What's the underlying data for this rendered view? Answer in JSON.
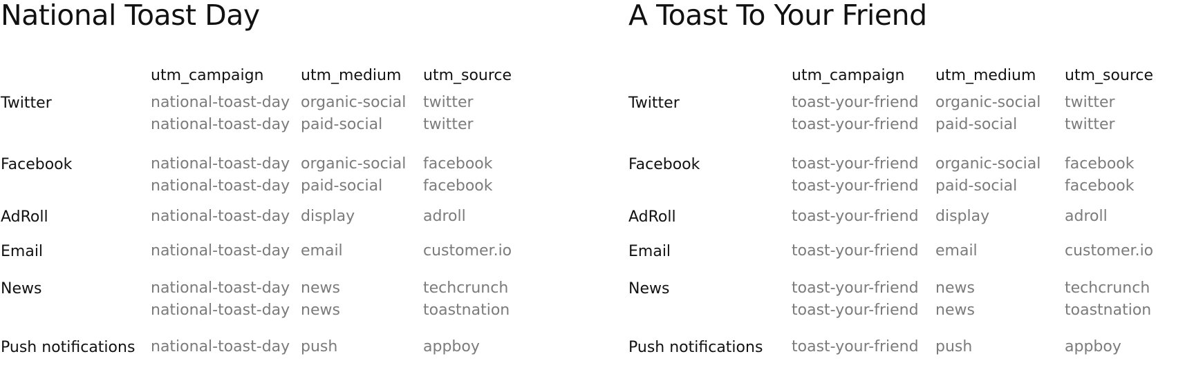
{
  "tables": [
    {
      "title": "National Toast Day",
      "headers": [
        "utm_campaign",
        "utm_medium",
        "utm_source"
      ],
      "rows": [
        {
          "label": "Twitter",
          "campaign": [
            "national-toast-day",
            "national-toast-day"
          ],
          "medium": [
            "organic-social",
            "paid-social"
          ],
          "source": [
            "twitter",
            "twitter"
          ]
        },
        {
          "label": "Facebook",
          "campaign": [
            "national-toast-day",
            "national-toast-day"
          ],
          "medium": [
            "organic-social",
            "paid-social"
          ],
          "source": [
            "facebook",
            "facebook"
          ]
        },
        {
          "label": "AdRoll",
          "campaign": [
            "national-toast-day"
          ],
          "medium": [
            "display"
          ],
          "source": [
            "adroll"
          ]
        },
        {
          "label": "Email",
          "campaign": [
            "national-toast-day"
          ],
          "medium": [
            "email"
          ],
          "source": [
            "customer.io"
          ]
        },
        {
          "label": "News",
          "campaign": [
            "national-toast-day",
            "national-toast-day"
          ],
          "medium": [
            "news",
            "news"
          ],
          "source": [
            "techcrunch",
            "toastnation"
          ]
        },
        {
          "label": "Push notifications",
          "campaign": [
            "national-toast-day"
          ],
          "medium": [
            "push"
          ],
          "source": [
            "appboy"
          ]
        }
      ]
    },
    {
      "title": "A Toast To Your Friend",
      "headers": [
        "utm_campaign",
        "utm_medium",
        "utm_source"
      ],
      "rows": [
        {
          "label": "Twitter",
          "campaign": [
            "toast-your-friend",
            "toast-your-friend"
          ],
          "medium": [
            "organic-social",
            "paid-social"
          ],
          "source": [
            "twitter",
            "twitter"
          ]
        },
        {
          "label": "Facebook",
          "campaign": [
            "toast-your-friend",
            "toast-your-friend"
          ],
          "medium": [
            "organic-social",
            "paid-social"
          ],
          "source": [
            "facebook",
            "facebook"
          ]
        },
        {
          "label": "AdRoll",
          "campaign": [
            "toast-your-friend"
          ],
          "medium": [
            "display"
          ],
          "source": [
            "adroll"
          ]
        },
        {
          "label": "Email",
          "campaign": [
            "toast-your-friend"
          ],
          "medium": [
            "email"
          ],
          "source": [
            "customer.io"
          ]
        },
        {
          "label": "News",
          "campaign": [
            "toast-your-friend",
            "toast-your-friend"
          ],
          "medium": [
            "news",
            "news"
          ],
          "source": [
            "techcrunch",
            "toastnation"
          ]
        },
        {
          "label": "Push notifications",
          "campaign": [
            "toast-your-friend"
          ],
          "medium": [
            "push"
          ],
          "source": [
            "appboy"
          ]
        }
      ]
    }
  ]
}
